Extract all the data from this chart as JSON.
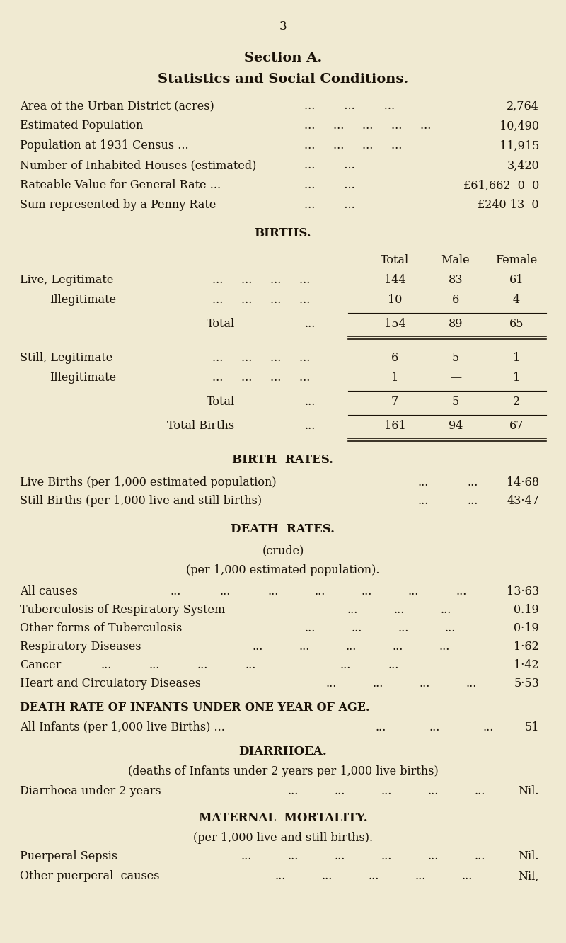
{
  "bg_color": "#f0ead2",
  "text_color": "#1a1208",
  "page_number": "3",
  "title1": "Section A.",
  "title2": "Statistics and Social Conditions.",
  "rows_general": [
    [
      "Area of the Urban District (acres)",
      "...",
      "...",
      "...",
      "2,764"
    ],
    [
      "Estimated Population",
      "... ... ... ... ...",
      "10,490"
    ],
    [
      "Population at 1931 Census ...",
      "... ... ... ...",
      "11,915"
    ],
    [
      "Number of Inhabited Houses (estimated)",
      "... ...",
      "3,420"
    ],
    [
      "Rateable Value for General Rate ...",
      "... ...",
      "£61,662  0  0"
    ],
    [
      "Sum represented by a Penny Rate",
      "... ...",
      "£240 13  0"
    ]
  ],
  "births_header": "BIRTHS.",
  "col_headers": [
    "Total",
    "Male",
    "Female"
  ],
  "live_legitimate": [
    "144",
    "83",
    "61"
  ],
  "live_illegitimate": [
    "10",
    "6",
    "4"
  ],
  "live_total": [
    "154",
    "89",
    "65"
  ],
  "still_legitimate": [
    "6",
    "5",
    "1"
  ],
  "still_illegitimate": [
    "1",
    "—",
    "1"
  ],
  "still_total": [
    "7",
    "5",
    "2"
  ],
  "total_births": [
    "161",
    "94",
    "67"
  ],
  "birth_rates_header": "BIRTH  RATES.",
  "birth_rates": [
    [
      "Live Births (per 1,000 estimated population)",
      "...",
      "...",
      "14·68"
    ],
    [
      "Still Births (per 1,000 live and still births)",
      "...",
      "...",
      "43·47"
    ]
  ],
  "death_rates_header": "DEATH  RATES.",
  "death_rates_sub1": "(crude)",
  "death_rates_sub2": "(per 1,000 estimated population).",
  "death_rates": [
    [
      "All causes",
      "13·63"
    ],
    [
      "Tuberculosis of Respiratory System",
      "0.19"
    ],
    [
      "Other forms of Tuberculosis",
      "0·19"
    ],
    [
      "Respiratory Diseases",
      "1·62"
    ],
    [
      "Cancer",
      "1·42"
    ],
    [
      "Heart and Circulatory Diseases",
      "5·53"
    ]
  ],
  "infant_header": "DEATH RATE OF INFANTS UNDER ONE YEAR OF AGE.",
  "infant_row": "51",
  "diarrhoea_header": "DIARRHOEA.",
  "diarrhoea_sub": "(deaths of Infants under 2 years per 1,000 live births)",
  "diarrhoea_val": "Nil.",
  "maternal_header": "MATERNAL  MORTALITY.",
  "maternal_sub": "(per 1,000 live and still births).",
  "maternal_rows": [
    [
      "Puerperal Sepsis",
      "Nil."
    ],
    [
      "Other puerperal  causes",
      "Nil,"
    ]
  ],
  "figw": 8.0,
  "figh": 13.32,
  "dpi": 100
}
